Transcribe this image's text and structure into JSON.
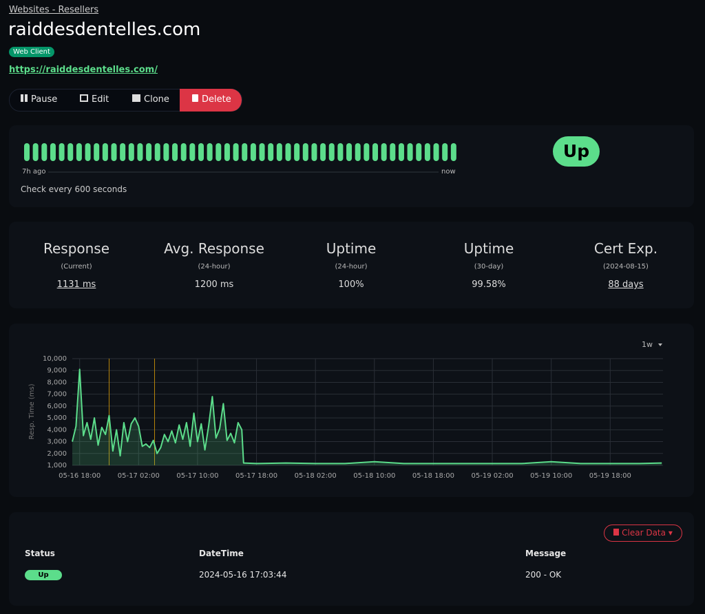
{
  "breadcrumb": "Websites - Resellers",
  "title": "raiddesdentelles.com",
  "tag": "Web Client",
  "url": "https://raiddesdentelles.com/",
  "buttons": [
    "Pause",
    "Edit",
    "Clone",
    "Delete"
  ],
  "heartbeat": {
    "start": "7h ago",
    "end": "now",
    "interval": "Check every 600 seconds",
    "status": "Up"
  },
  "stats": [
    {
      "title": "Response",
      "sub": "(Current)",
      "value": "1131 ms"
    },
    {
      "title": "Avg. Response",
      "sub": "(24-hour)",
      "value": "1200 ms"
    },
    {
      "title": "Uptime",
      "sub": "(24-hour)",
      "value": "100%"
    },
    {
      "title": "Uptime",
      "sub": "(30-day)",
      "value": "99.58%"
    },
    {
      "title": "Cert Exp.",
      "sub": "(2024-08-15)",
      "value": "88 days"
    }
  ],
  "chart_data": {
    "type": "line",
    "y_label": "Resp. Time (ms)",
    "range": "1w",
    "color": "#5cdd8b",
    "x": [
      "05-16 17:00",
      "05-16 17:30",
      "05-16 18:00",
      "05-16 18:30",
      "05-16 19:00",
      "05-16 19:30",
      "05-16 20:00",
      "05-16 20:30",
      "05-16 21:00",
      "05-16 21:30",
      "05-16 22:00",
      "05-16 22:30",
      "05-16 23:00",
      "05-16 23:30",
      "05-17 00:00",
      "05-17 00:30",
      "05-17 01:00",
      "05-17 01:30",
      "05-17 02:00",
      "05-17 02:30",
      "05-17 03:00",
      "05-17 03:30",
      "05-17 04:00",
      "05-17 04:30",
      "05-17 05:00",
      "05-17 05:30",
      "05-17 06:00",
      "05-17 06:30",
      "05-17 07:00",
      "05-17 07:30",
      "05-17 08:00",
      "05-17 08:30",
      "05-17 09:00",
      "05-17 09:30",
      "05-17 10:00",
      "05-17 10:30",
      "05-17 11:00",
      "05-17 11:30",
      "05-17 12:00",
      "05-17 12:30",
      "05-17 13:00",
      "05-17 13:30",
      "05-17 14:00",
      "05-17 14:30",
      "05-17 15:00",
      "05-17 15:30",
      "05-17 16:00",
      "05-17 16:15",
      "05-17 18:00",
      "05-17 22:00",
      "05-18 02:00",
      "05-18 06:00",
      "05-18 10:00",
      "05-18 14:00",
      "05-18 18:00",
      "05-18 22:00",
      "05-19 02:00",
      "05-19 06:00",
      "05-19 10:00",
      "05-19 14:00",
      "05-19 18:00",
      "05-19 22:00",
      "05-20 01:00"
    ],
    "values": [
      3000,
      4300,
      9100,
      3500,
      4600,
      3200,
      5000,
      2700,
      4200,
      3600,
      5200,
      2200,
      4000,
      1800,
      4600,
      3000,
      4500,
      5000,
      4300,
      2600,
      2800,
      2500,
      3100,
      2000,
      2500,
      3600,
      3000,
      3900,
      2900,
      4400,
      3200,
      4600,
      2600,
      5400,
      3000,
      4500,
      2300,
      4300,
      6800,
      3300,
      4100,
      6200,
      3100,
      3700,
      2900,
      4600,
      4000,
      1200,
      1150,
      1200,
      1150,
      1150,
      1300,
      1150,
      1150,
      1150,
      1150,
      1150,
      1300,
      1150,
      1150,
      1150,
      1200
    ],
    "events_x": [
      "05-16 22:00",
      "05-17 04:10"
    ],
    "xlim": [
      "05-16 17:00",
      "05-20 01:10"
    ],
    "xticks": [
      "05-16 18:00",
      "05-17 02:00",
      "05-17 10:00",
      "05-17 18:00",
      "05-18 02:00",
      "05-18 10:00",
      "05-18 18:00",
      "05-19 02:00",
      "05-19 10:00",
      "05-19 18:00"
    ],
    "ylim": [
      1000,
      10000
    ],
    "yticks": [
      {
        "value": 1000,
        "label": "1,000"
      },
      {
        "value": 2000,
        "label": "2,000"
      },
      {
        "value": 3000,
        "label": "3,000"
      },
      {
        "value": 4000,
        "label": "4,000"
      },
      {
        "value": 5000,
        "label": "5,000"
      },
      {
        "value": 6000,
        "label": "6,000"
      },
      {
        "value": 7000,
        "label": "7,000"
      },
      {
        "value": 8000,
        "label": "8,000"
      },
      {
        "value": 9000,
        "label": "9,000"
      },
      {
        "value": 10000,
        "label": "10,000"
      }
    ],
    "grid": true
  },
  "table": {
    "action": "Clear Data",
    "headers": [
      "Status",
      "DateTime",
      "Message"
    ],
    "rows": [
      [
        "Up",
        "2024-05-16 17:03:44",
        "200 - OK"
      ]
    ]
  }
}
